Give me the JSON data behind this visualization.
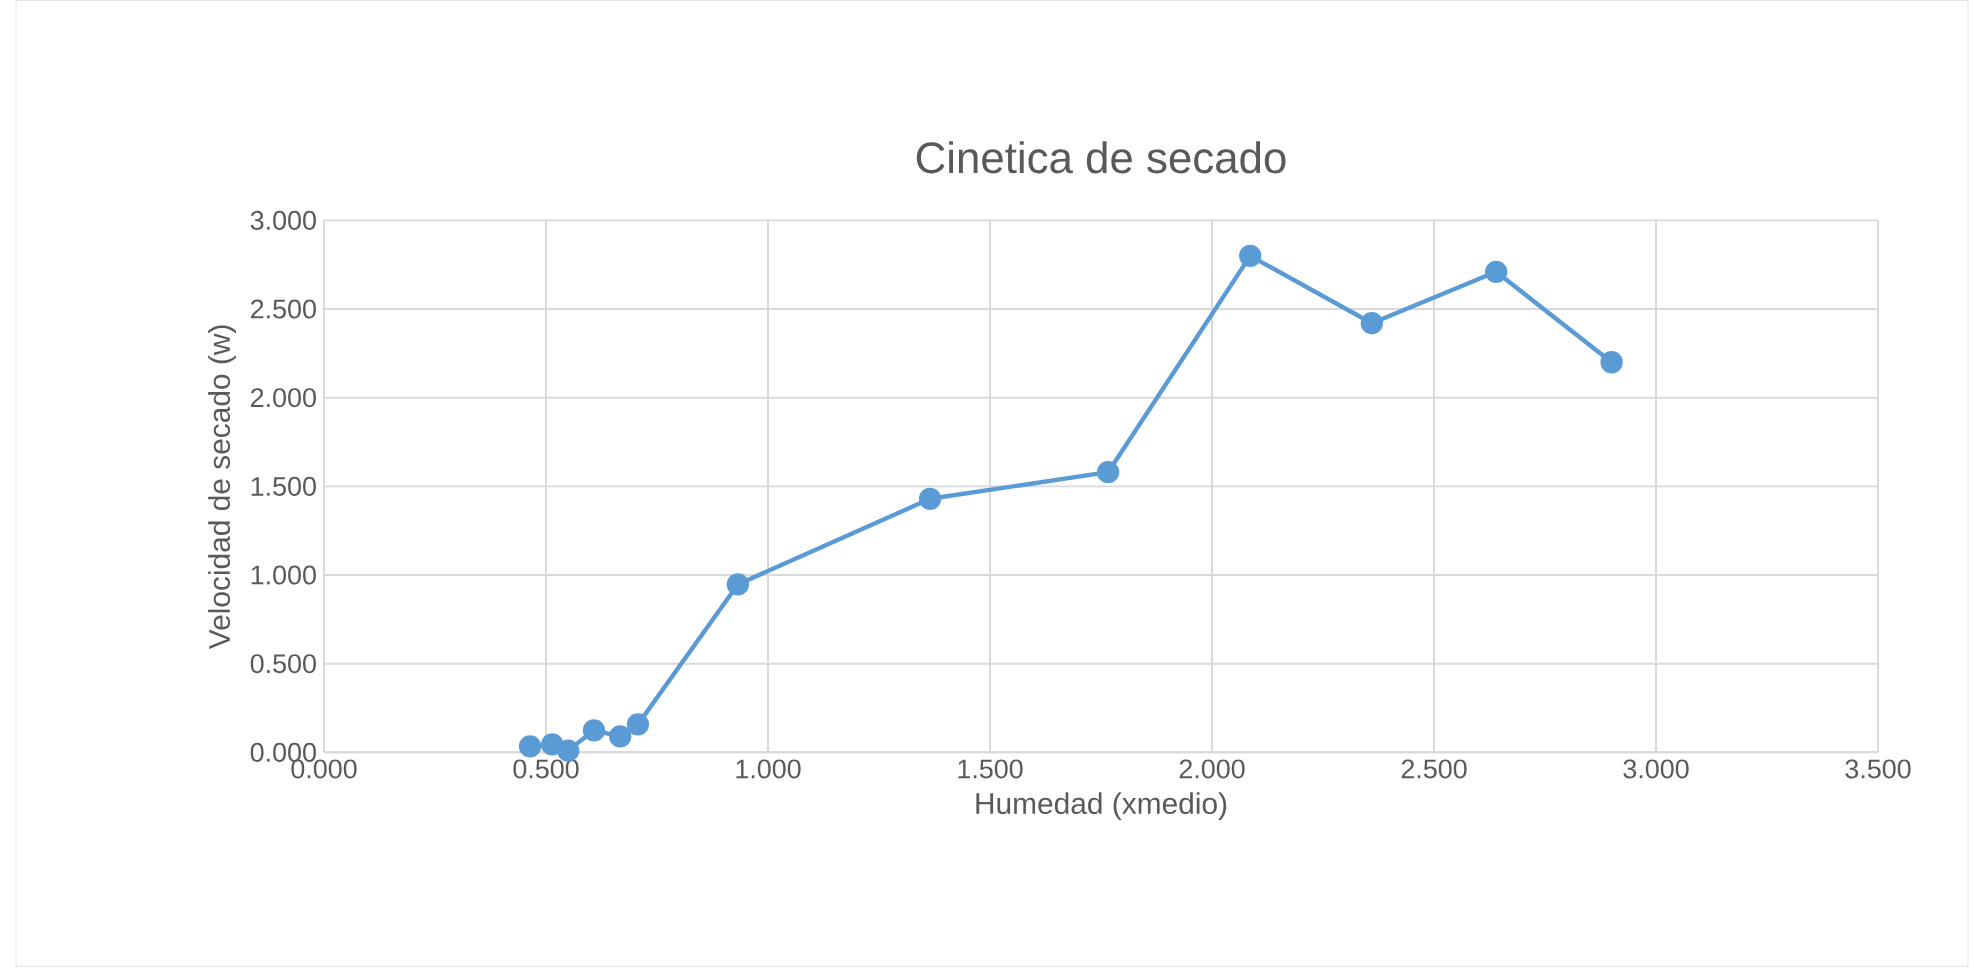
{
  "chart_data": {
    "type": "line",
    "title": "Cinetica de secado",
    "xlabel": "Humedad (xmedio)",
    "ylabel": "Velocidad de secado (w)",
    "x": [
      0.464,
      0.514,
      0.55,
      0.608,
      0.667,
      0.707,
      0.932,
      1.365,
      1.766,
      2.086,
      2.36,
      2.64,
      2.9
    ],
    "series": [
      {
        "color": "#5b9bd5",
        "values": [
          0.034,
          0.045,
          0.01,
          0.124,
          0.09,
          0.158,
          0.947,
          1.43,
          1.58,
          2.8,
          2.42,
          2.71,
          2.2
        ]
      }
    ],
    "xlim": [
      0,
      3.5
    ],
    "ylim": [
      0,
      3
    ],
    "xticks": [
      {
        "value": 0,
        "label": "0.000"
      },
      {
        "value": 0.5,
        "label": "0.500"
      },
      {
        "value": 1,
        "label": "1.000"
      },
      {
        "value": 1.5,
        "label": "1.500"
      },
      {
        "value": 2,
        "label": "2.000"
      },
      {
        "value": 2.5,
        "label": "2.500"
      },
      {
        "value": 3,
        "label": "3.000"
      },
      {
        "value": 3.5,
        "label": "3.500"
      }
    ],
    "yticks": [
      {
        "value": 0,
        "label": "0.000"
      },
      {
        "value": 0.5,
        "label": "0.500"
      },
      {
        "value": 1,
        "label": "1.000"
      },
      {
        "value": 1.5,
        "label": "1.500"
      },
      {
        "value": 2,
        "label": "2.000"
      },
      {
        "value": 2.5,
        "label": "2.500"
      },
      {
        "value": 3,
        "label": "3.000"
      }
    ],
    "grid": true,
    "marker": "circle",
    "line_style": "solid"
  }
}
